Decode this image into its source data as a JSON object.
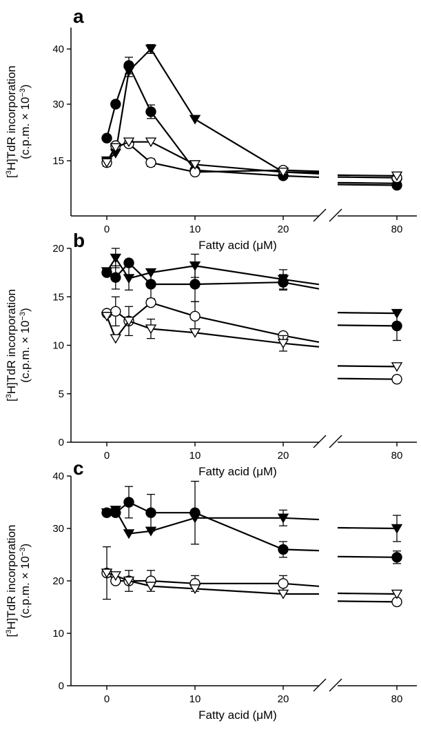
{
  "chart_data": [
    {
      "type": "line",
      "panel_label": "a",
      "xlabel": "Fatty acid (μM)",
      "ylabel_line1": "[",
      "ylabel_sup1": "3",
      "ylabel_line1b": "H]TdR incorporation",
      "ylabel_line2": "(c.p.m. × 10",
      "ylabel_sup2": "−3",
      "ylabel_line2b": ")",
      "x_ticks": [
        "0",
        "10",
        "20",
        "80"
      ],
      "x_break": "between 20 and 80",
      "y_ticks": [
        "15",
        "30",
        "40"
      ],
      "series": [
        {
          "marker": "filled-circle",
          "x": [
            0,
            1,
            2.5,
            5,
            10,
            20,
            80
          ],
          "y": [
            21,
            30,
            37,
            28,
            12.5,
            11,
            8.5
          ],
          "err": [
            0,
            0,
            1.5,
            1.8,
            0,
            0,
            0
          ]
        },
        {
          "marker": "filled-triangle",
          "x": [
            0,
            1,
            2.5,
            5,
            10,
            20,
            80
          ],
          "y": [
            15,
            17,
            36,
            40,
            26,
            12,
            9
          ],
          "err": [
            0,
            0,
            1,
            0.8,
            0,
            0,
            0
          ]
        },
        {
          "marker": "open-circle",
          "x": [
            0,
            1,
            2.5,
            5,
            10,
            20,
            80
          ],
          "y": [
            14.5,
            19,
            19.5,
            14.5,
            12,
            12.5,
            10.5
          ],
          "err": [
            1,
            0,
            0,
            1,
            0,
            0,
            0
          ]
        },
        {
          "marker": "open-triangle",
          "x": [
            0,
            1,
            2.5,
            5,
            10,
            20,
            80
          ],
          "y": [
            14.5,
            18.5,
            20,
            20,
            14,
            12,
            11
          ],
          "err": [
            0,
            0,
            0,
            0,
            0,
            0,
            0
          ]
        }
      ]
    },
    {
      "type": "line",
      "panel_label": "b",
      "xlabel": "Fatty acid (μM)",
      "ylabel_line1": "[",
      "ylabel_sup1": "3",
      "ylabel_line1b": "H]TdR incorporation",
      "ylabel_line2": "(c.p.m. × 10",
      "ylabel_sup2": "−3",
      "ylabel_line2b": ")",
      "x_ticks": [
        "0",
        "10",
        "20",
        "80"
      ],
      "x_break": "between 20 and 80",
      "y_ticks": [
        "0",
        "5",
        "10",
        "15",
        "20"
      ],
      "ylim": [
        0,
        20
      ],
      "series": [
        {
          "marker": "filled-circle",
          "x": [
            0,
            1,
            2.5,
            5,
            10,
            20,
            80
          ],
          "y": [
            17.5,
            17,
            18.5,
            16.3,
            16.3,
            16.5,
            12
          ],
          "err": [
            0,
            1.2,
            0,
            1.5,
            1.8,
            0.8,
            1.5
          ]
        },
        {
          "marker": "filled-triangle",
          "x": [
            0,
            1,
            2.5,
            5,
            10,
            20,
            80
          ],
          "y": [
            17.6,
            19,
            16.9,
            17.5,
            18.2,
            16.8,
            13.3
          ],
          "err": [
            0,
            1,
            1.2,
            0,
            1.2,
            1,
            0
          ]
        },
        {
          "marker": "open-circle",
          "x": [
            0,
            1,
            2.5,
            5,
            10,
            20,
            80
          ],
          "y": [
            13.3,
            13.5,
            12.5,
            14.4,
            13,
            11,
            6.5
          ],
          "err": [
            0,
            1.5,
            1.5,
            0,
            1.5,
            0,
            0
          ]
        },
        {
          "marker": "open-triangle",
          "x": [
            0,
            1,
            2.5,
            5,
            10,
            20,
            80
          ],
          "y": [
            13,
            10.7,
            12.5,
            11.7,
            11.3,
            10.2,
            7.8
          ],
          "err": [
            0,
            0,
            0,
            1,
            0,
            0.8,
            0
          ]
        }
      ]
    },
    {
      "type": "line",
      "panel_label": "c",
      "xlabel": "Fatty acid (μM)",
      "ylabel_line1": "[",
      "ylabel_sup1": "3",
      "ylabel_line1b": "H]TdR incorporation",
      "ylabel_line2": "(c.p.m. × 10",
      "ylabel_sup2": "−3",
      "ylabel_line2b": ")",
      "x_ticks": [
        "0",
        "10",
        "20",
        "80"
      ],
      "x_break": "between 20 and 80",
      "y_ticks": [
        "0",
        "10",
        "20",
        "30",
        "40"
      ],
      "ylim": [
        0,
        40
      ],
      "series": [
        {
          "marker": "filled-circle",
          "x": [
            0,
            1,
            2.5,
            5,
            10,
            20,
            80
          ],
          "y": [
            33,
            33,
            35,
            33,
            33,
            26,
            24.5
          ],
          "err": [
            0,
            0,
            3,
            3.5,
            6,
            1.5,
            1.2
          ]
        },
        {
          "marker": "filled-triangle",
          "x": [
            0,
            1,
            2.5,
            5,
            10,
            20,
            80
          ],
          "y": [
            33,
            33.5,
            29,
            29.5,
            32,
            32,
            30
          ],
          "err": [
            0,
            0,
            0,
            0,
            0,
            1.5,
            2.5
          ]
        },
        {
          "marker": "open-circle",
          "x": [
            0,
            1,
            2.5,
            5,
            10,
            20,
            80
          ],
          "y": [
            21.5,
            20,
            20,
            20,
            19.5,
            19.5,
            16
          ],
          "err": [
            5,
            0,
            2,
            2,
            1.5,
            1.5,
            0
          ]
        },
        {
          "marker": "open-triangle",
          "x": [
            0,
            1,
            2.5,
            5,
            10,
            20,
            80
          ],
          "y": [
            21.5,
            21,
            20,
            19,
            18.5,
            17.5,
            17.5
          ],
          "err": [
            0,
            0,
            0,
            0,
            0,
            0,
            0
          ]
        }
      ]
    }
  ]
}
